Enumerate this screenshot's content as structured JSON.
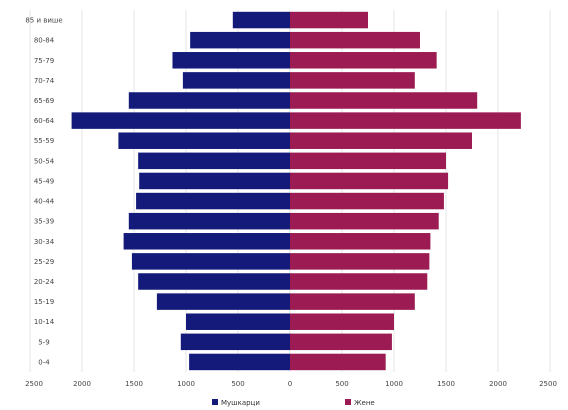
{
  "chart_data": {
    "type": "bar",
    "orientation": "horizontal-population-pyramid",
    "categories": [
      "0-4",
      "5-9",
      "10-14",
      "15-19",
      "20-24",
      "25-29",
      "30-34",
      "35-39",
      "40-44",
      "45-49",
      "50-54",
      "55-59",
      "60-64",
      "65-69",
      "70-74",
      "75-79",
      "80-84",
      "85 и више"
    ],
    "series": [
      {
        "name": "Мушкарци",
        "color": "#131a7a",
        "values": [
          970,
          1050,
          1000,
          1280,
          1460,
          1520,
          1600,
          1550,
          1480,
          1450,
          1460,
          1650,
          2100,
          1550,
          1030,
          1130,
          960,
          550
        ]
      },
      {
        "name": "Жене",
        "color": "#9b1b52",
        "values": [
          920,
          980,
          1000,
          1200,
          1320,
          1340,
          1350,
          1430,
          1480,
          1520,
          1500,
          1750,
          2220,
          1800,
          1200,
          1410,
          1250,
          750
        ]
      }
    ],
    "y_tick_labels": [
      "0-4",
      "5-9",
      "10-14",
      "15-19",
      "20-24",
      "25-29",
      "30-34",
      "35-39",
      "40-44",
      "45-49",
      "50-54",
      "55-59",
      "60-64",
      "65-69",
      "70-74",
      "75-79",
      "80-84",
      "85 и више"
    ],
    "x_tick_labels": [
      "2500",
      "2000",
      "1500",
      "1000",
      "500",
      "0",
      "500",
      "1000",
      "1500",
      "2000",
      "2500"
    ],
    "xlim": [
      -2500,
      2500
    ],
    "grid": true,
    "legend_position": "bottom"
  }
}
